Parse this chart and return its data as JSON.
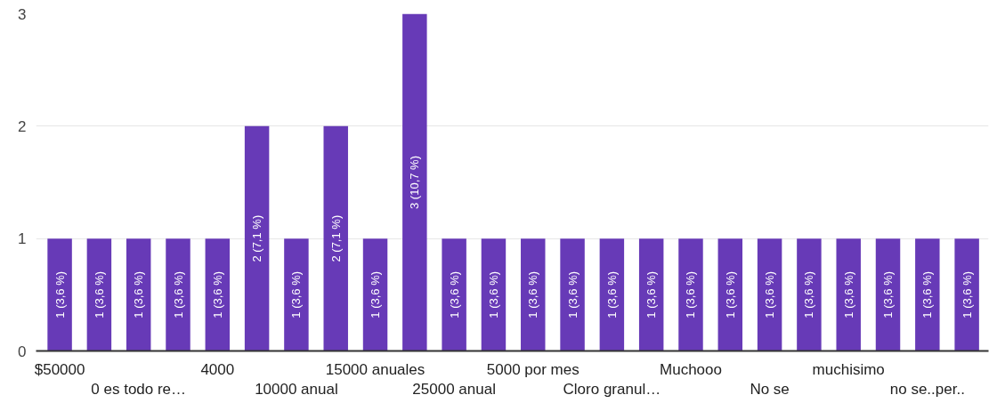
{
  "chart_data": {
    "type": "bar",
    "categories": [
      "$50000",
      null,
      "0 es todo re…",
      null,
      "4000",
      null,
      "10000 anual",
      null,
      "15000 anuales",
      null,
      "25000 anual",
      null,
      "5000 por mes",
      null,
      "Cloro granul…",
      null,
      "Muchooo",
      null,
      "No se",
      null,
      "muchisimo",
      null,
      "no se..per..",
      null
    ],
    "values": [
      1,
      1,
      1,
      1,
      1,
      2,
      1,
      2,
      1,
      3,
      1,
      1,
      1,
      1,
      1,
      1,
      1,
      1,
      1,
      1,
      1,
      1,
      1,
      1
    ],
    "value_labels": [
      "1 (3,6 %)",
      "1 (3,6 %)",
      "1 (3,6 %)",
      "1 (3,6 %)",
      "1 (3,6 %)",
      "2 (7,1 %)",
      "1 (3,6 %)",
      "2 (7,1 %)",
      "1 (3,6 %)",
      "3 (10,7 %)",
      "1 (3,6 %)",
      "1 (3,6 %)",
      "1 (3,6 %)",
      "1 (3,6 %)",
      "1 (3,6 %)",
      "1 (3,6 %)",
      "1 (3,6 %)",
      "1 (3,6 %)",
      "1 (3,6 %)",
      "1 (3,6 %)",
      "1 (3,6 %)",
      "1 (3,6 %)",
      "1 (3,6 %)",
      "1 (3,6 %)"
    ],
    "color": "#673ab7",
    "ylim": [
      0,
      3
    ],
    "yticks": [
      0,
      1,
      2,
      3
    ],
    "grid": "y"
  }
}
